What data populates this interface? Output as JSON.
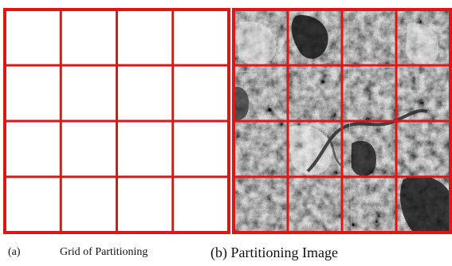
{
  "figure": {
    "panel_a": {
      "label": "(a)",
      "caption": "Grid of Partitioning",
      "rows": 4,
      "cols": 4,
      "line_color": "#e01515"
    },
    "panel_b": {
      "caption": "(b) Partitioning Image",
      "rows": 4,
      "cols": 4,
      "line_color": "#e01515",
      "content": "grayscale-satellite-image"
    }
  }
}
